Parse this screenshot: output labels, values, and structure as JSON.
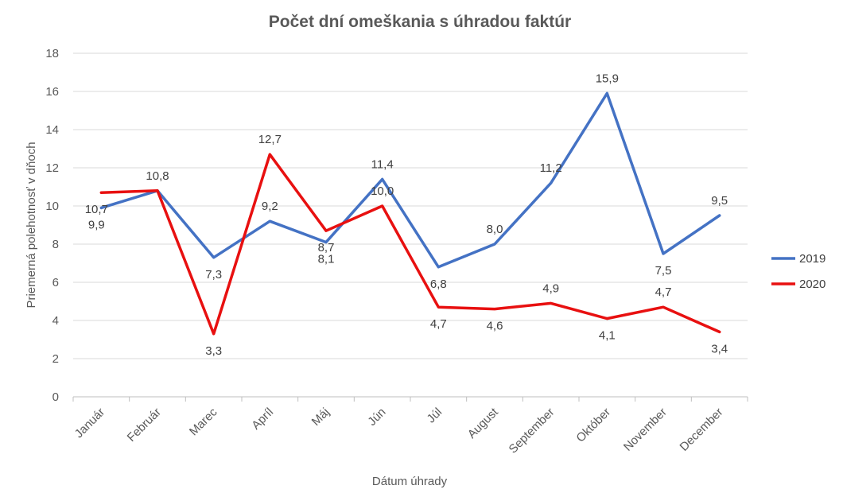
{
  "chart_data": {
    "type": "line",
    "title": "Počet dní omeškania s úhradou faktúr",
    "xlabel": "Dátum úhrady",
    "ylabel": "Priemerná polehotnosť  v dňoch",
    "categories": [
      "Január",
      "Február",
      "Marec",
      "Apríl",
      "Máj",
      "Jún",
      "Júl",
      "August",
      "September",
      "Október",
      "November",
      "December"
    ],
    "ylim": [
      0,
      18
    ],
    "yticks": [
      "0",
      "2",
      "4",
      "6",
      "8",
      "10",
      "12",
      "14",
      "16",
      "18"
    ],
    "grid": true,
    "legend_position": "right",
    "series": [
      {
        "name": "2019",
        "color": "#4472C4",
        "values": [
          9.9,
          10.8,
          7.3,
          9.2,
          8.1,
          11.4,
          6.8,
          8.0,
          11.2,
          15.9,
          7.5,
          9.5
        ],
        "labels": [
          "9,9",
          "10,8",
          "7,3",
          "9,2",
          "8,1",
          "11,4",
          "6,8",
          "8,0",
          "11,2",
          "15,9",
          "7,5",
          "9,5"
        ]
      },
      {
        "name": "2020",
        "color": "#E81010",
        "values": [
          10.7,
          10.8,
          3.3,
          12.7,
          8.7,
          10.0,
          4.7,
          4.6,
          4.9,
          4.1,
          4.7,
          3.4
        ],
        "labels": [
          "10,7",
          "",
          "3,3",
          "12,7",
          "8,7",
          "10,0",
          "4,7",
          "4,6",
          "4,9",
          "4,1",
          "4,7",
          "3,4"
        ]
      }
    ]
  }
}
